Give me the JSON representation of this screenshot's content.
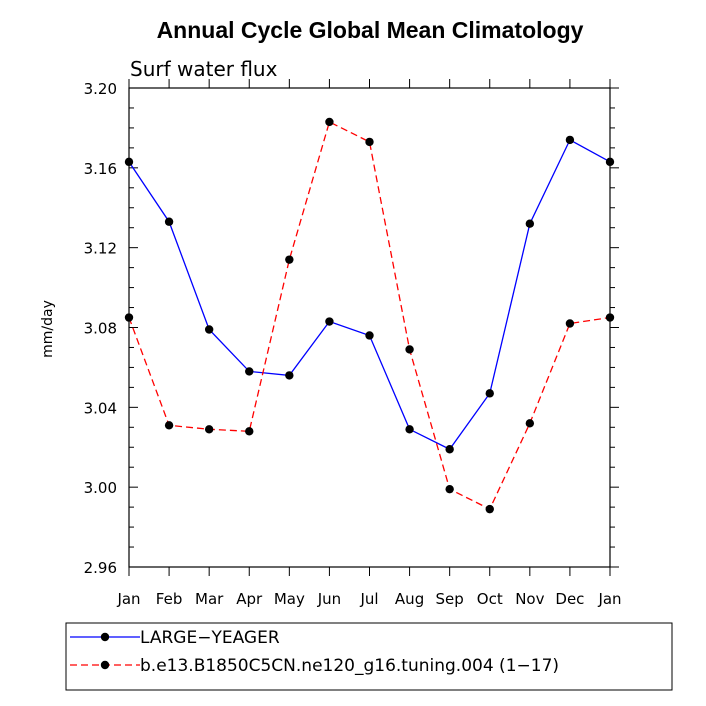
{
  "chart_data": {
    "type": "line",
    "title": "Annual Cycle Global Mean Climatology",
    "subtitle": "Surf water flux",
    "xlabel": "",
    "ylabel": "mm/day",
    "categories": [
      "Jan",
      "Feb",
      "Mar",
      "Apr",
      "May",
      "Jun",
      "Jul",
      "Aug",
      "Sep",
      "Oct",
      "Nov",
      "Dec",
      "Jan"
    ],
    "ylim": [
      2.96,
      3.2
    ],
    "yticks": [
      "2.96",
      "3.00",
      "3.04",
      "3.08",
      "3.12",
      "3.16",
      "3.20"
    ],
    "grid": false,
    "legend_position": "bottom",
    "series": [
      {
        "name": "LARGE−YEAGER",
        "color": "#0000ff",
        "line_style": "solid",
        "marker": "filled-circle",
        "values": [
          3.163,
          3.133,
          3.079,
          3.058,
          3.056,
          3.083,
          3.076,
          3.029,
          3.019,
          3.047,
          3.132,
          3.174,
          3.163
        ]
      },
      {
        "name": "b.e13.B1850C5CN.ne120_g16.tuning.004 (1−17)",
        "color": "#ff0000",
        "line_style": "dashed",
        "marker": "filled-circle",
        "values": [
          3.085,
          3.031,
          3.029,
          3.028,
          3.114,
          3.183,
          3.173,
          3.069,
          2.999,
          2.989,
          3.032,
          3.082,
          3.085
        ]
      }
    ]
  }
}
